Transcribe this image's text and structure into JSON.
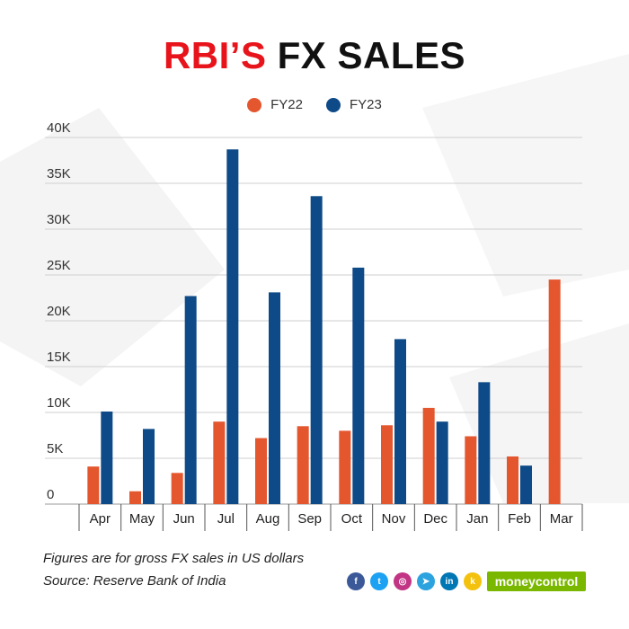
{
  "title": {
    "accent": "RBI’S",
    "rest": "FX SALES"
  },
  "legend": [
    {
      "label": "FY22",
      "color": "#e3562e"
    },
    {
      "label": "FY23",
      "color": "#0d4a87"
    }
  ],
  "chart_data": {
    "type": "bar",
    "title": "RBI’S FX SALES",
    "xlabel": "",
    "ylabel": "",
    "ylim": [
      0,
      40000
    ],
    "yticks": [
      0,
      5000,
      10000,
      15000,
      20000,
      25000,
      30000,
      35000,
      40000
    ],
    "ytick_labels": [
      "0",
      "5K",
      "10K",
      "15K",
      "20K",
      "25K",
      "30K",
      "35K",
      "40K"
    ],
    "grid": true,
    "legend_position": "top-center",
    "categories": [
      "Apr",
      "May",
      "Jun",
      "Jul",
      "Aug",
      "Sep",
      "Oct",
      "Nov",
      "Dec",
      "Jan",
      "Feb",
      "Mar"
    ],
    "series": [
      {
        "name": "FY22",
        "color": "#e3562e",
        "values": [
          4100,
          1400,
          3400,
          9000,
          7200,
          8500,
          8000,
          8600,
          10500,
          7400,
          5200,
          24500
        ]
      },
      {
        "name": "FY23",
        "color": "#0d4a87",
        "values": [
          10100,
          8200,
          22700,
          38700,
          23100,
          33600,
          25800,
          18000,
          9000,
          13300,
          4200,
          null
        ]
      }
    ]
  },
  "footnotes": {
    "note": "Figures are for gross FX sales in US dollars",
    "source": "Source: Reserve Bank of India"
  },
  "socials": [
    {
      "icon": "facebook-icon",
      "glyph": "f",
      "color": "#3b5998"
    },
    {
      "icon": "twitter-icon",
      "glyph": "t",
      "color": "#1da1f2"
    },
    {
      "icon": "instagram-icon",
      "glyph": "◎",
      "color": "#c13584"
    },
    {
      "icon": "telegram-icon",
      "glyph": "➤",
      "color": "#2aa3df"
    },
    {
      "icon": "linkedin-icon",
      "glyph": "in",
      "color": "#0077b5"
    },
    {
      "icon": "koo-icon",
      "glyph": "k",
      "color": "#f4c20d"
    }
  ],
  "brand": {
    "name": "moneycontrol",
    "color": "#7ab800"
  }
}
